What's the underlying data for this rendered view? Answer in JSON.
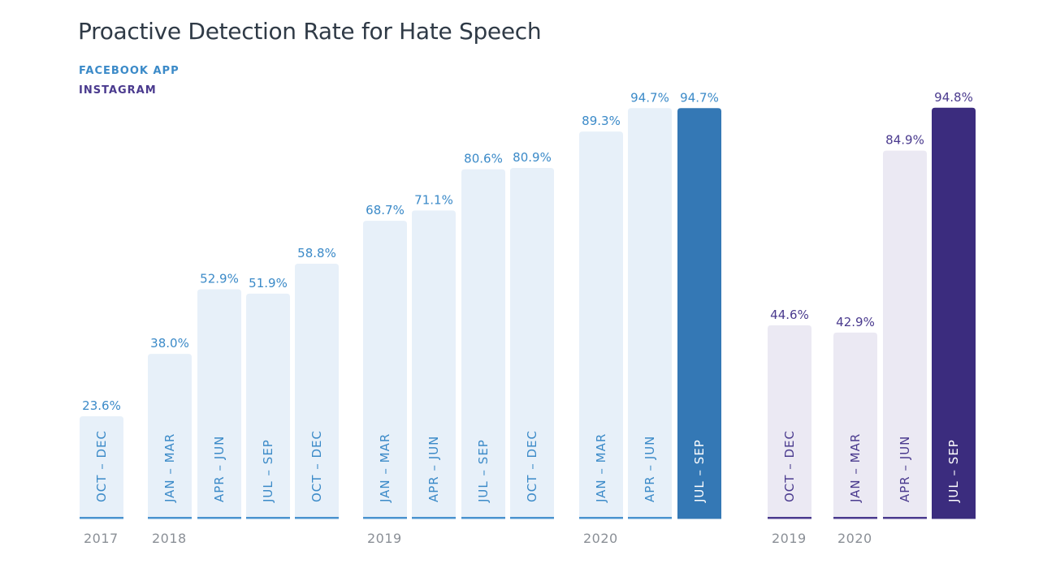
{
  "title": "Proactive Detection Rate for Hate Speech",
  "legend": {
    "facebook": "FACEBOOK APP",
    "instagram": "INSTAGRAM"
  },
  "colors": {
    "facebook_bar": "#e7f0f9",
    "facebook_highlight": "#3478b5",
    "facebook_text": "#3b8ac8",
    "facebook_baseline": "#4a93cf",
    "instagram_bar": "#ebe9f3",
    "instagram_highlight": "#3b2c7e",
    "instagram_text": "#4a3a8e",
    "year_text": "#8a8f96"
  },
  "chart_data": {
    "type": "bar",
    "title": "Proactive Detection Rate for Hate Speech",
    "ylim": [
      0,
      100
    ],
    "grid": false,
    "legend_position": "top-left",
    "series": [
      {
        "name": "FACEBOOK APP",
        "categories": [
          "OCT – DEC",
          "JAN – MAR",
          "APR – JUN",
          "JUL – SEP",
          "OCT – DEC",
          "JAN – MAR",
          "APR – JUN",
          "JUL – SEP",
          "OCT – DEC",
          "JAN – MAR",
          "APR – JUN",
          "JUL – SEP"
        ],
        "values": [
          23.6,
          38.0,
          52.9,
          51.9,
          58.8,
          68.7,
          71.1,
          80.6,
          80.9,
          89.3,
          94.7,
          94.7
        ],
        "value_labels": [
          "23.6%",
          "38.0%",
          "52.9%",
          "51.9%",
          "58.8%",
          "68.7%",
          "71.1%",
          "80.6%",
          "80.9%",
          "89.3%",
          "94.7%",
          "94.7%"
        ],
        "highlighted_index": 11
      },
      {
        "name": "INSTAGRAM",
        "categories": [
          "OCT – DEC",
          "JAN – MAR",
          "APR – JUN",
          "JUL – SEP"
        ],
        "values": [
          44.6,
          42.9,
          84.9,
          94.8
        ],
        "value_labels": [
          "44.6%",
          "42.9%",
          "84.9%",
          "94.8%"
        ],
        "highlighted_index": 3
      }
    ],
    "year_labels": [
      {
        "series": 0,
        "bar_index": 0,
        "text": "2017"
      },
      {
        "series": 0,
        "bar_index": 1,
        "text": "2018"
      },
      {
        "series": 0,
        "bar_index": 5,
        "text": "2019"
      },
      {
        "series": 0,
        "bar_index": 9,
        "text": "2020"
      },
      {
        "series": 1,
        "bar_index": 0,
        "text": "2019"
      },
      {
        "series": 1,
        "bar_index": 1,
        "text": "2020"
      }
    ]
  }
}
